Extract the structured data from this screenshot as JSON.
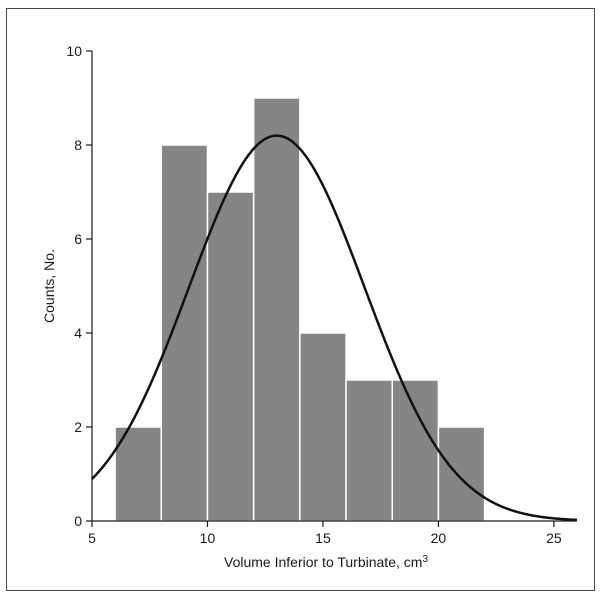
{
  "chart_data": {
    "type": "bar",
    "subtype": "histogram-with-normal-curve",
    "xlabel": "Volume Inferior to Turbinate, cm",
    "xlabel_superscript": "3",
    "ylabel": "Counts, No.",
    "xlim": [
      5,
      26
    ],
    "ylim": [
      0,
      10
    ],
    "x_ticks": [
      5,
      10,
      15,
      20,
      25
    ],
    "y_ticks": [
      0,
      2,
      4,
      6,
      8,
      10
    ],
    "bins": [
      {
        "x0": 6,
        "x1": 8,
        "count": 2
      },
      {
        "x0": 8,
        "x1": 10,
        "count": 8
      },
      {
        "x0": 10,
        "x1": 12,
        "count": 7
      },
      {
        "x0": 12,
        "x1": 14,
        "count": 9
      },
      {
        "x0": 14,
        "x1": 16,
        "count": 4
      },
      {
        "x0": 16,
        "x1": 18,
        "count": 3
      },
      {
        "x0": 18,
        "x1": 20,
        "count": 3
      },
      {
        "x0": 20,
        "x1": 22,
        "count": 2
      }
    ],
    "normal_curve": {
      "mean": 13.0,
      "sd": 3.8,
      "peak": 8.2,
      "x_range": [
        5,
        26
      ]
    },
    "bar_color": "#858585",
    "bar_edge_color": "#ffffff",
    "curve_color": "#111111",
    "grid": false,
    "legend": "none"
  }
}
